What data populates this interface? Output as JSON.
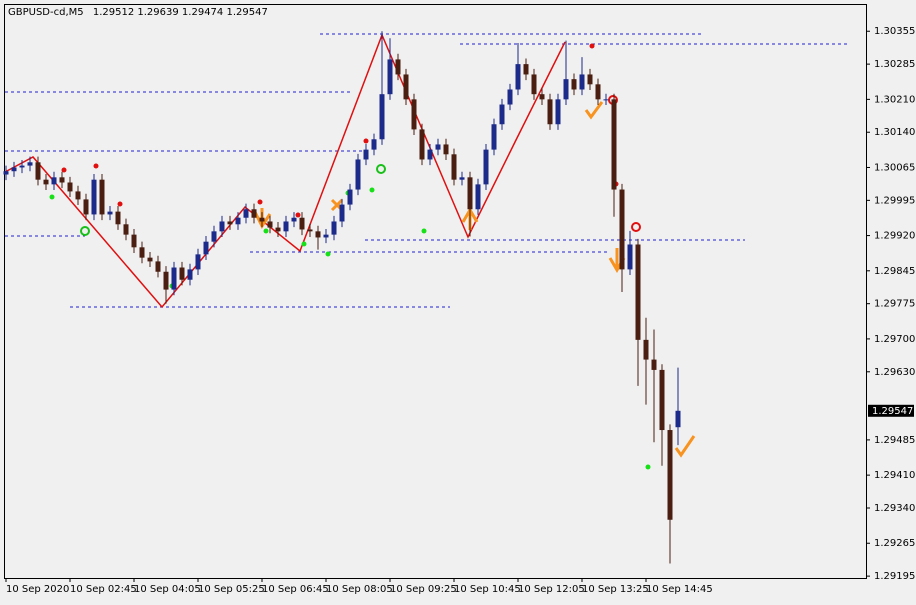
{
  "chart_data": {
    "type": "candlestick",
    "title": "GBPUSD-cd,M5",
    "categories": [
      "10 Sep 2020",
      null,
      null,
      null,
      null,
      null,
      null,
      null,
      "10 Sep 02:45",
      null,
      null,
      null,
      null,
      null,
      null,
      null,
      "10 Sep 04:05",
      null,
      null,
      null,
      null,
      null,
      null,
      null,
      "10 Sep 05:25",
      null,
      null,
      null,
      null,
      null,
      null,
      null,
      "10 Sep 06:45",
      null,
      null,
      null,
      null,
      null,
      null,
      null,
      "10 Sep 08:05",
      null,
      null,
      null,
      null,
      null,
      null,
      null,
      "10 Sep 09:25",
      null,
      null,
      null,
      null,
      null,
      null,
      null,
      "10 Sep 10:45",
      null,
      null,
      null,
      null,
      null,
      null,
      null,
      "10 Sep 12:05",
      null,
      null,
      null,
      null,
      null,
      null,
      null,
      "10 Sep 13:25",
      null,
      null,
      null,
      null,
      null,
      null,
      null,
      "10 Sep 14:45",
      null,
      null,
      null,
      null
    ],
    "open": [
      1.3005,
      1.30057,
      1.30065,
      1.30069,
      1.30076,
      1.30039,
      1.30029,
      1.30044,
      1.30033,
      1.30014,
      1.29997,
      1.29965,
      1.30039,
      1.29965,
      1.29971,
      1.29944,
      1.29922,
      1.29895,
      1.29873,
      1.29865,
      1.29843,
      1.29805,
      1.29852,
      1.29826,
      1.29848,
      1.2988,
      1.29907,
      1.29929,
      1.2995,
      1.29944,
      1.29958,
      1.29976,
      1.29958,
      1.2995,
      1.29937,
      1.29929,
      1.2995,
      1.29958,
      1.29933,
      1.29929,
      1.29916,
      1.29922,
      1.2995,
      1.29986,
      1.30018,
      1.30082,
      1.30103,
      1.30125,
      1.30221,
      1.30295,
      1.30263,
      1.3021,
      1.30146,
      1.30082,
      1.30103,
      1.30114,
      1.30093,
      1.30039,
      1.30044,
      1.29976,
      1.30029,
      1.30103,
      1.30157,
      1.30199,
      1.30231,
      1.30285,
      1.30263,
      1.30221,
      1.3021,
      1.30157,
      1.3021,
      1.30253,
      1.30231,
      1.30263,
      1.30242,
      1.3021,
      1.3021,
      1.30018,
      1.29848,
      1.29901,
      1.29698,
      1.29656,
      1.29634,
      1.29506,
      1.29512
    ],
    "high": [
      1.30069,
      1.30077,
      1.30081,
      1.30088,
      1.30088,
      1.30051,
      1.30056,
      1.30056,
      1.30045,
      1.30026,
      1.30009,
      1.30051,
      1.30051,
      1.29983,
      1.29983,
      1.29956,
      1.29934,
      1.29907,
      1.29885,
      1.29877,
      1.29855,
      1.29864,
      1.29864,
      1.2986,
      1.29892,
      1.29919,
      1.29941,
      1.29962,
      1.29962,
      1.2997,
      1.29988,
      1.29988,
      1.2997,
      1.29962,
      1.29949,
      1.29962,
      1.2997,
      1.2997,
      1.29945,
      1.29941,
      1.29934,
      1.29962,
      1.29998,
      1.3003,
      1.30094,
      1.30115,
      1.30137,
      1.30355,
      1.3034,
      1.30307,
      1.30275,
      1.30222,
      1.30158,
      1.30115,
      1.30126,
      1.30126,
      1.30105,
      1.30056,
      1.30056,
      1.30041,
      1.30115,
      1.30169,
      1.30211,
      1.30243,
      1.3033,
      1.30297,
      1.30275,
      1.30233,
      1.30222,
      1.30222,
      1.30335,
      1.30265,
      1.303,
      1.30275,
      1.30254,
      1.30222,
      1.30222,
      1.3003,
      1.2993,
      1.29913,
      1.29745,
      1.2972,
      1.29646,
      1.29518,
      1.29639
    ],
    "low": [
      1.30038,
      1.30045,
      1.30053,
      1.30057,
      1.30027,
      1.30017,
      1.30017,
      1.30021,
      1.30002,
      1.29985,
      1.29953,
      1.29953,
      1.29953,
      1.29953,
      1.29932,
      1.2991,
      1.29883,
      1.29861,
      1.29853,
      1.29831,
      1.29775,
      1.29793,
      1.29814,
      1.29814,
      1.29836,
      1.29868,
      1.29895,
      1.29917,
      1.29932,
      1.29932,
      1.29946,
      1.29946,
      1.29938,
      1.29925,
      1.29917,
      1.29917,
      1.29938,
      1.29921,
      1.29917,
      1.2989,
      1.29904,
      1.2991,
      1.29938,
      1.29974,
      1.30006,
      1.3007,
      1.30091,
      1.30113,
      1.30209,
      1.30251,
      1.30198,
      1.30134,
      1.3007,
      1.3007,
      1.30091,
      1.30081,
      1.30027,
      1.30027,
      1.29918,
      1.29964,
      1.30017,
      1.30091,
      1.30145,
      1.30187,
      1.30219,
      1.30251,
      1.30209,
      1.30198,
      1.30145,
      1.30145,
      1.30198,
      1.30219,
      1.30219,
      1.3023,
      1.30198,
      1.30198,
      1.2996,
      1.298,
      1.29836,
      1.296,
      1.2956,
      1.2948,
      1.2943,
      1.29222,
      1.29474
    ],
    "close": [
      1.30057,
      1.30065,
      1.30069,
      1.30076,
      1.30039,
      1.30029,
      1.30044,
      1.30033,
      1.30014,
      1.29997,
      1.29965,
      1.30039,
      1.29965,
      1.29971,
      1.29944,
      1.29922,
      1.29895,
      1.29873,
      1.29865,
      1.29843,
      1.29805,
      1.29852,
      1.29826,
      1.29848,
      1.2988,
      1.29907,
      1.29929,
      1.2995,
      1.29944,
      1.29958,
      1.29976,
      1.29958,
      1.2995,
      1.29937,
      1.29929,
      1.2995,
      1.29958,
      1.29933,
      1.29929,
      1.29916,
      1.29922,
      1.2995,
      1.29986,
      1.30018,
      1.30082,
      1.30103,
      1.30125,
      1.30221,
      1.30295,
      1.30263,
      1.3021,
      1.30146,
      1.30082,
      1.30103,
      1.30114,
      1.30093,
      1.30039,
      1.30044,
      1.29976,
      1.30029,
      1.30103,
      1.30157,
      1.30199,
      1.30231,
      1.30285,
      1.30263,
      1.30221,
      1.3021,
      1.30157,
      1.3021,
      1.30253,
      1.30231,
      1.30263,
      1.30242,
      1.3021,
      1.3021,
      1.30018,
      1.29848,
      1.29901,
      1.29698,
      1.29656,
      1.29634,
      1.29506,
      1.29315,
      1.29547
    ],
    "up_color": "#1c2a8a",
    "down_color": "#4a1e10",
    "ylim": [
      1.29191,
      1.30413
    ],
    "yticks": [
      1.30355,
      1.30285,
      {
        "value": 1.3021,
        "label": "1.30210"
      },
      {
        "value": 1.3014,
        "label": "1.30140"
      },
      1.30065,
      1.29995,
      {
        "value": 1.2992,
        "label": "1.29920"
      },
      1.29845,
      1.29775,
      {
        "value": 1.297,
        "label": "1.29700"
      },
      {
        "value": 1.2963,
        "label": "1.29630"
      },
      1.29485,
      {
        "value": 1.2941,
        "label": "1.29410"
      },
      {
        "value": 1.2934,
        "label": "1.29340"
      },
      1.29265,
      1.29195
    ],
    "grid": false
  }
}
